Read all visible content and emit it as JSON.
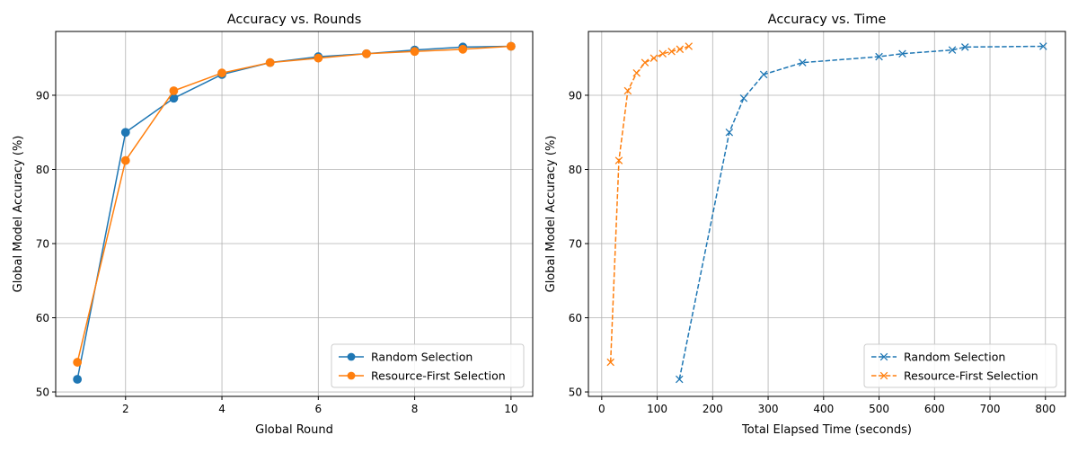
{
  "chart_data": [
    {
      "type": "line",
      "title": "Accuracy vs. Rounds",
      "xlabel": "Global Round",
      "ylabel": "Global Model Accuracy (%)",
      "xlim": [
        0.55,
        10.45
      ],
      "ylim": [
        49.4,
        98.6
      ],
      "xticks": [
        2,
        4,
        6,
        8,
        10
      ],
      "yticks": [
        50,
        60,
        70,
        80,
        90
      ],
      "grid": true,
      "legend_position": "bottom-right",
      "series": [
        {
          "name": "Random Selection",
          "color": "#1f77b4",
          "marker": "circle",
          "linestyle": "solid",
          "x": [
            1,
            2,
            3,
            4,
            5,
            6,
            7,
            8,
            9,
            10
          ],
          "y": [
            51.7,
            85.0,
            89.6,
            92.8,
            94.4,
            95.2,
            95.6,
            96.1,
            96.5,
            96.6
          ]
        },
        {
          "name": "Resource-First Selection",
          "color": "#ff7f0e",
          "marker": "circle",
          "linestyle": "solid",
          "x": [
            1,
            2,
            3,
            4,
            5,
            6,
            7,
            8,
            9,
            10
          ],
          "y": [
            54.0,
            81.2,
            90.6,
            93.0,
            94.4,
            95.0,
            95.6,
            95.9,
            96.2,
            96.6
          ]
        }
      ]
    },
    {
      "type": "line",
      "title": "Accuracy vs. Time",
      "xlabel": "Total Elapsed Time (seconds)",
      "ylabel": "Global Model Accuracy (%)",
      "xlim": [
        -24,
        836
      ],
      "ylim": [
        49.4,
        98.6
      ],
      "xticks": [
        0,
        100,
        200,
        300,
        400,
        500,
        600,
        700,
        800
      ],
      "yticks": [
        50,
        60,
        70,
        80,
        90
      ],
      "grid": true,
      "legend_position": "bottom-right",
      "series": [
        {
          "name": "Random Selection",
          "color": "#1f77b4",
          "marker": "x",
          "linestyle": "dashed",
          "x": [
            140,
            230,
            256,
            292,
            362,
            500,
            542,
            632,
            655,
            796
          ],
          "y": [
            51.7,
            85.0,
            89.6,
            92.8,
            94.4,
            95.2,
            95.6,
            96.1,
            96.5,
            96.6
          ]
        },
        {
          "name": "Resource-First Selection",
          "color": "#ff7f0e",
          "marker": "x",
          "linestyle": "dashed",
          "x": [
            16,
            31,
            47,
            63,
            78,
            94,
            110,
            126,
            141,
            157
          ],
          "y": [
            54.0,
            81.2,
            90.6,
            93.0,
            94.4,
            95.0,
            95.6,
            95.9,
            96.2,
            96.6
          ]
        }
      ]
    }
  ]
}
